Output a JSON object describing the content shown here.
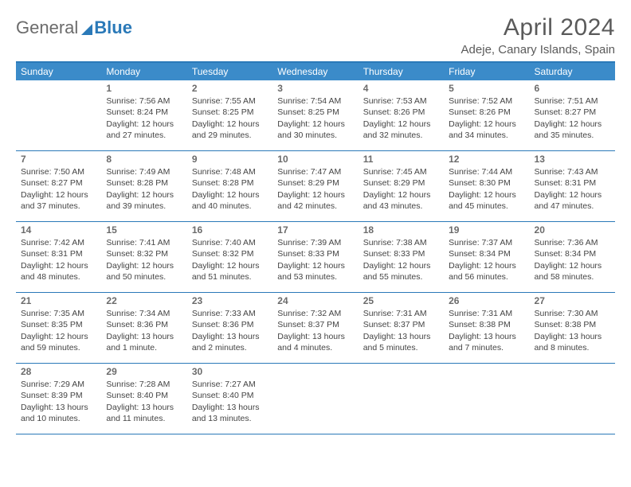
{
  "logo": {
    "part1": "General",
    "part2": "Blue"
  },
  "title": "April 2024",
  "location": "Adeje, Canary Islands, Spain",
  "colors": {
    "header_bg": "#3b8bc9",
    "border": "#2a79b8",
    "text": "#444444",
    "title_text": "#5a5a5a",
    "logo_gray": "#6b6b6b",
    "logo_blue": "#2a79b8",
    "white": "#ffffff"
  },
  "dow": [
    "Sunday",
    "Monday",
    "Tuesday",
    "Wednesday",
    "Thursday",
    "Friday",
    "Saturday"
  ],
  "weeks": [
    [
      null,
      {
        "n": "1",
        "sr": "Sunrise: 7:56 AM",
        "ss": "Sunset: 8:24 PM",
        "d1": "Daylight: 12 hours",
        "d2": "and 27 minutes."
      },
      {
        "n": "2",
        "sr": "Sunrise: 7:55 AM",
        "ss": "Sunset: 8:25 PM",
        "d1": "Daylight: 12 hours",
        "d2": "and 29 minutes."
      },
      {
        "n": "3",
        "sr": "Sunrise: 7:54 AM",
        "ss": "Sunset: 8:25 PM",
        "d1": "Daylight: 12 hours",
        "d2": "and 30 minutes."
      },
      {
        "n": "4",
        "sr": "Sunrise: 7:53 AM",
        "ss": "Sunset: 8:26 PM",
        "d1": "Daylight: 12 hours",
        "d2": "and 32 minutes."
      },
      {
        "n": "5",
        "sr": "Sunrise: 7:52 AM",
        "ss": "Sunset: 8:26 PM",
        "d1": "Daylight: 12 hours",
        "d2": "and 34 minutes."
      },
      {
        "n": "6",
        "sr": "Sunrise: 7:51 AM",
        "ss": "Sunset: 8:27 PM",
        "d1": "Daylight: 12 hours",
        "d2": "and 35 minutes."
      }
    ],
    [
      {
        "n": "7",
        "sr": "Sunrise: 7:50 AM",
        "ss": "Sunset: 8:27 PM",
        "d1": "Daylight: 12 hours",
        "d2": "and 37 minutes."
      },
      {
        "n": "8",
        "sr": "Sunrise: 7:49 AM",
        "ss": "Sunset: 8:28 PM",
        "d1": "Daylight: 12 hours",
        "d2": "and 39 minutes."
      },
      {
        "n": "9",
        "sr": "Sunrise: 7:48 AM",
        "ss": "Sunset: 8:28 PM",
        "d1": "Daylight: 12 hours",
        "d2": "and 40 minutes."
      },
      {
        "n": "10",
        "sr": "Sunrise: 7:47 AM",
        "ss": "Sunset: 8:29 PM",
        "d1": "Daylight: 12 hours",
        "d2": "and 42 minutes."
      },
      {
        "n": "11",
        "sr": "Sunrise: 7:45 AM",
        "ss": "Sunset: 8:29 PM",
        "d1": "Daylight: 12 hours",
        "d2": "and 43 minutes."
      },
      {
        "n": "12",
        "sr": "Sunrise: 7:44 AM",
        "ss": "Sunset: 8:30 PM",
        "d1": "Daylight: 12 hours",
        "d2": "and 45 minutes."
      },
      {
        "n": "13",
        "sr": "Sunrise: 7:43 AM",
        "ss": "Sunset: 8:31 PM",
        "d1": "Daylight: 12 hours",
        "d2": "and 47 minutes."
      }
    ],
    [
      {
        "n": "14",
        "sr": "Sunrise: 7:42 AM",
        "ss": "Sunset: 8:31 PM",
        "d1": "Daylight: 12 hours",
        "d2": "and 48 minutes."
      },
      {
        "n": "15",
        "sr": "Sunrise: 7:41 AM",
        "ss": "Sunset: 8:32 PM",
        "d1": "Daylight: 12 hours",
        "d2": "and 50 minutes."
      },
      {
        "n": "16",
        "sr": "Sunrise: 7:40 AM",
        "ss": "Sunset: 8:32 PM",
        "d1": "Daylight: 12 hours",
        "d2": "and 51 minutes."
      },
      {
        "n": "17",
        "sr": "Sunrise: 7:39 AM",
        "ss": "Sunset: 8:33 PM",
        "d1": "Daylight: 12 hours",
        "d2": "and 53 minutes."
      },
      {
        "n": "18",
        "sr": "Sunrise: 7:38 AM",
        "ss": "Sunset: 8:33 PM",
        "d1": "Daylight: 12 hours",
        "d2": "and 55 minutes."
      },
      {
        "n": "19",
        "sr": "Sunrise: 7:37 AM",
        "ss": "Sunset: 8:34 PM",
        "d1": "Daylight: 12 hours",
        "d2": "and 56 minutes."
      },
      {
        "n": "20",
        "sr": "Sunrise: 7:36 AM",
        "ss": "Sunset: 8:34 PM",
        "d1": "Daylight: 12 hours",
        "d2": "and 58 minutes."
      }
    ],
    [
      {
        "n": "21",
        "sr": "Sunrise: 7:35 AM",
        "ss": "Sunset: 8:35 PM",
        "d1": "Daylight: 12 hours",
        "d2": "and 59 minutes."
      },
      {
        "n": "22",
        "sr": "Sunrise: 7:34 AM",
        "ss": "Sunset: 8:36 PM",
        "d1": "Daylight: 13 hours",
        "d2": "and 1 minute."
      },
      {
        "n": "23",
        "sr": "Sunrise: 7:33 AM",
        "ss": "Sunset: 8:36 PM",
        "d1": "Daylight: 13 hours",
        "d2": "and 2 minutes."
      },
      {
        "n": "24",
        "sr": "Sunrise: 7:32 AM",
        "ss": "Sunset: 8:37 PM",
        "d1": "Daylight: 13 hours",
        "d2": "and 4 minutes."
      },
      {
        "n": "25",
        "sr": "Sunrise: 7:31 AM",
        "ss": "Sunset: 8:37 PM",
        "d1": "Daylight: 13 hours",
        "d2": "and 5 minutes."
      },
      {
        "n": "26",
        "sr": "Sunrise: 7:31 AM",
        "ss": "Sunset: 8:38 PM",
        "d1": "Daylight: 13 hours",
        "d2": "and 7 minutes."
      },
      {
        "n": "27",
        "sr": "Sunrise: 7:30 AM",
        "ss": "Sunset: 8:38 PM",
        "d1": "Daylight: 13 hours",
        "d2": "and 8 minutes."
      }
    ],
    [
      {
        "n": "28",
        "sr": "Sunrise: 7:29 AM",
        "ss": "Sunset: 8:39 PM",
        "d1": "Daylight: 13 hours",
        "d2": "and 10 minutes."
      },
      {
        "n": "29",
        "sr": "Sunrise: 7:28 AM",
        "ss": "Sunset: 8:40 PM",
        "d1": "Daylight: 13 hours",
        "d2": "and 11 minutes."
      },
      {
        "n": "30",
        "sr": "Sunrise: 7:27 AM",
        "ss": "Sunset: 8:40 PM",
        "d1": "Daylight: 13 hours",
        "d2": "and 13 minutes."
      },
      null,
      null,
      null,
      null
    ]
  ]
}
